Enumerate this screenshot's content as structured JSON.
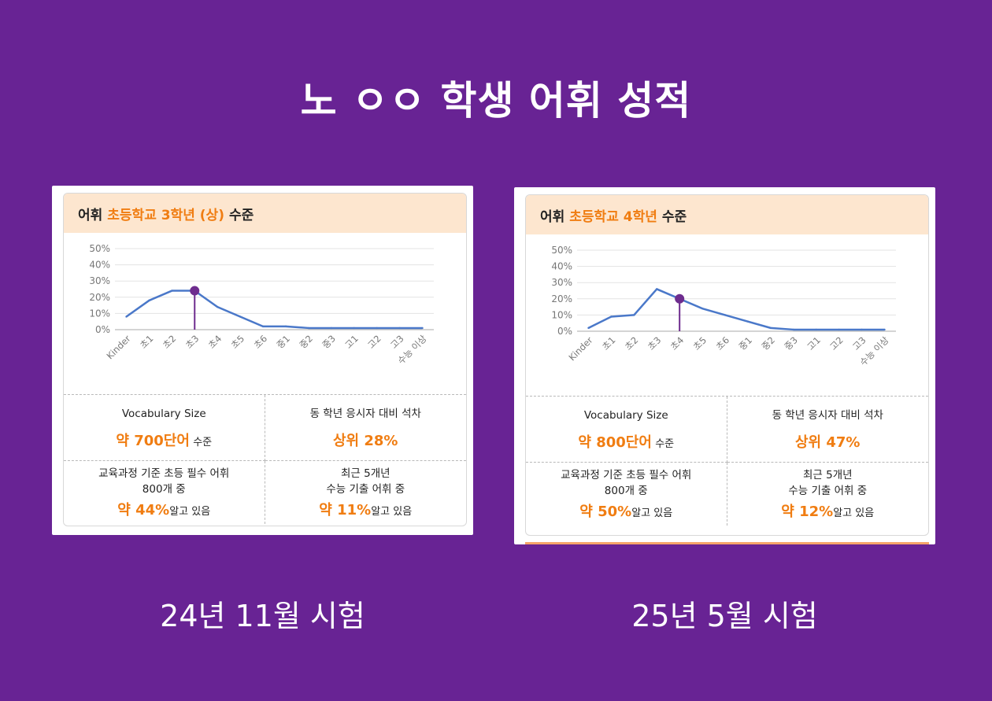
{
  "title": "노 ㅇㅇ 학생 어휘 성적",
  "reports": [
    {
      "header": {
        "prefix": "어휘",
        "level": "초등학교 3학년 (상)",
        "suffix": "수준"
      },
      "vocab": {
        "label": "Vocabulary Size",
        "value": "약 700단어",
        "unit": "수준"
      },
      "rank": {
        "label": "동 학년 응시자 대비 석차",
        "value": "상위 28%"
      },
      "curriculum": {
        "line1": "교육과정 기준 초등 필수 어휘",
        "line2": "800개 중",
        "value": "약 44%",
        "unit": "알고 있음"
      },
      "suneung": {
        "line1": "최근 5개년",
        "line2": "수능 기출 어휘 중",
        "value": "약 11%",
        "unit": "알고 있음"
      },
      "caption": "24년 11월 시험"
    },
    {
      "header": {
        "prefix": "어휘",
        "level": "초등학교 4학년",
        "suffix": "수준"
      },
      "vocab": {
        "label": "Vocabulary Size",
        "value": "약 800단어",
        "unit": "수준"
      },
      "rank": {
        "label": "동 학년 응시자 대비 석차",
        "value": "상위 47%"
      },
      "curriculum": {
        "line1": "교육과정 기준 초등 필수 어휘",
        "line2": "800개 중",
        "value": "약 50%",
        "unit": "알고 있음"
      },
      "suneung": {
        "line1": "최근 5개년",
        "line2": "수능 기출 어휘 중",
        "value": "약 12%",
        "unit": "알고 있음"
      },
      "caption": "25년 5월 시험"
    }
  ],
  "colors": {
    "background": "#682394",
    "line": "#4a78c9",
    "marker": "#6e2c8e",
    "accent": "#f07d12",
    "header_bg": "#fde6cf"
  },
  "chart_data": [
    {
      "type": "line",
      "categories": [
        "Kinder",
        "초1",
        "초2",
        "초3",
        "초4",
        "초5",
        "초6",
        "중1",
        "중2",
        "중3",
        "고1",
        "고2",
        "고3",
        "수능 이상"
      ],
      "values": [
        8,
        18,
        24,
        24,
        14,
        8,
        2,
        2,
        1,
        1,
        1,
        1,
        1,
        1
      ],
      "highlight_index": 3,
      "yticks": [
        "50%",
        "40%",
        "30%",
        "20%",
        "10%",
        "0%"
      ],
      "ylim": [
        0,
        50
      ],
      "grid": true
    },
    {
      "type": "line",
      "categories": [
        "Kinder",
        "초1",
        "초2",
        "초3",
        "초4",
        "초5",
        "초6",
        "중1",
        "중2",
        "중3",
        "고1",
        "고2",
        "고3",
        "수능 이상"
      ],
      "values": [
        2,
        9,
        10,
        26,
        20,
        14,
        10,
        6,
        2,
        1,
        1,
        1,
        1,
        1
      ],
      "highlight_index": 4,
      "yticks": [
        "50%",
        "40%",
        "30%",
        "20%",
        "10%",
        "0%"
      ],
      "ylim": [
        0,
        50
      ],
      "grid": true
    }
  ]
}
